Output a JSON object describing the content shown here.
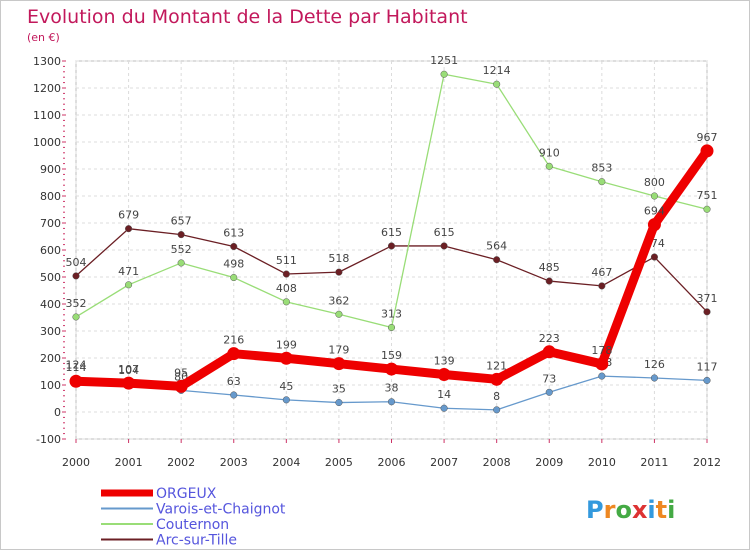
{
  "chart_data": {
    "type": "line",
    "title": "Evolution du Montant de la Dette par Habitant",
    "subtitle": "(en €)",
    "x": [
      "2000",
      "2001",
      "2002",
      "2003",
      "2004",
      "2005",
      "2006",
      "2007",
      "2008",
      "2009",
      "2010",
      "2011",
      "2012"
    ],
    "ylim": [
      -100,
      1300
    ],
    "yticks": [
      "-100",
      "0",
      "100",
      "200",
      "300",
      "400",
      "500",
      "600",
      "700",
      "800",
      "900",
      "1000",
      "1100",
      "1200",
      "1300"
    ],
    "grid": true,
    "legend_position": "bottom-left",
    "series": [
      {
        "name": "Arc-sur-Tille",
        "color": "#6b1f24",
        "values": [
          504,
          679,
          657,
          613,
          511,
          518,
          615,
          615,
          564,
          485,
          467,
          574,
          371
        ]
      },
      {
        "name": "Couternon",
        "color": "#99dd77",
        "values": [
          352,
          471,
          552,
          498,
          408,
          362,
          313,
          1251,
          1214,
          910,
          853,
          800,
          751
        ]
      },
      {
        "name": "Varois-et-Chaignot",
        "color": "#6699cc",
        "values": [
          124,
          104,
          80,
          63,
          45,
          35,
          38,
          14,
          8,
          73,
          133,
          126,
          117
        ]
      },
      {
        "name": "ORGEUX",
        "color": "#ee0000",
        "values": [
          114,
          107,
          95,
          216,
          199,
          179,
          159,
          139,
          121,
          223,
          178,
          694,
          967
        ]
      }
    ]
  },
  "legend": [
    {
      "name": "ORGEUX",
      "color": "#ee0000"
    },
    {
      "name": "Varois-et-Chaignot",
      "color": "#6699cc"
    },
    {
      "name": "Couternon",
      "color": "#99dd77"
    },
    {
      "name": "Arc-sur-Tille",
      "color": "#6b1f24"
    }
  ],
  "logo": "Proxiti"
}
